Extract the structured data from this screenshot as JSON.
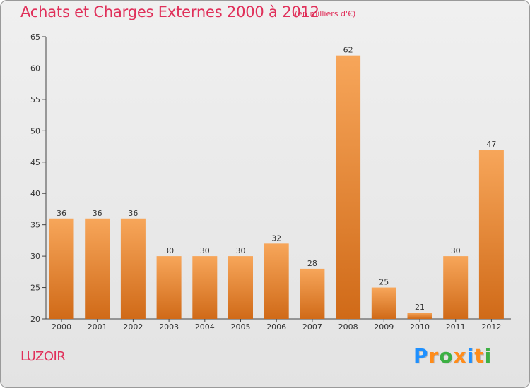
{
  "title": "Achats et Charges Externes 2000 à 2012",
  "subtitle": "(en milliers d'€)",
  "commune": "LUZOIR",
  "brand": {
    "letters": [
      "P",
      "r",
      "o",
      "x",
      "i",
      "t",
      "i"
    ],
    "colors": [
      "#1e90ff",
      "#ff8c1a",
      "#3cb043",
      "#ff8c1a",
      "#1e90ff",
      "#ff8c1a",
      "#3cb043"
    ]
  },
  "colors": {
    "bar_light": "#f7a65a",
    "bar_dark": "#d06a18",
    "title": "#e0305a",
    "axis": "#333333"
  },
  "chart_data": {
    "type": "bar",
    "categories": [
      "2000",
      "2001",
      "2002",
      "2003",
      "2004",
      "2005",
      "2006",
      "2007",
      "2008",
      "2009",
      "2010",
      "2011",
      "2012"
    ],
    "values": [
      36,
      36,
      36,
      30,
      30,
      30,
      32,
      28,
      62,
      25,
      21,
      30,
      47
    ],
    "title": "Achats et Charges Externes 2000 à 2012",
    "ylim": [
      20,
      65
    ],
    "yticks": [
      20,
      25,
      30,
      35,
      40,
      45,
      50,
      55,
      60,
      65
    ],
    "grid": false,
    "data_labels": true
  }
}
